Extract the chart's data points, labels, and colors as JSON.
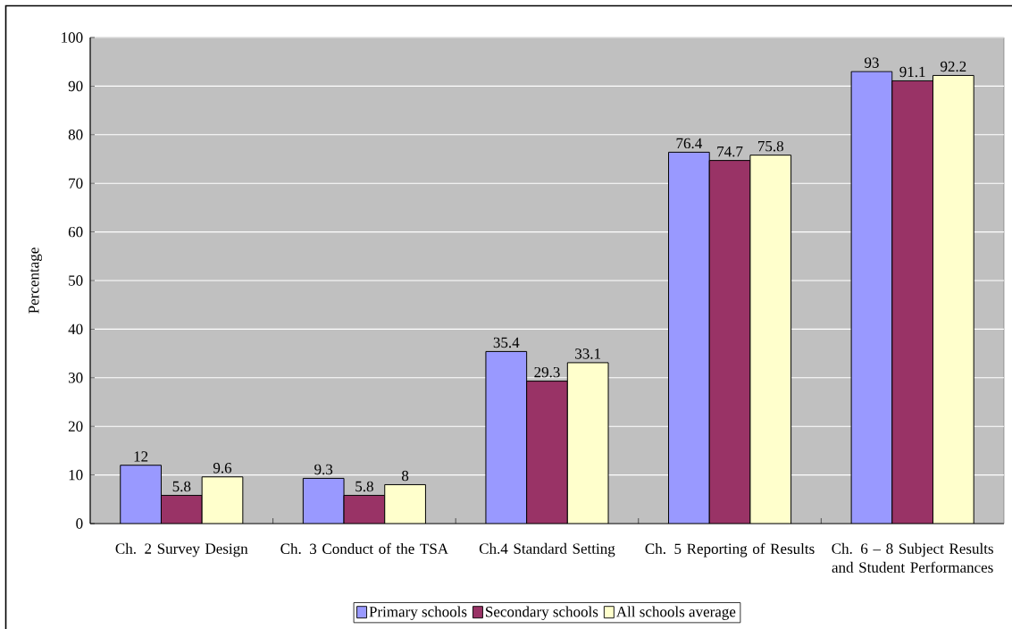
{
  "chart_data": {
    "type": "bar",
    "ylabel": "Percentage",
    "categories": [
      "Ch. 2 Survey Design",
      "Ch. 3 Conduct of the TSA",
      "Ch.4 Standard Setting",
      "Ch. 5 Reporting of Results",
      "Ch. 6 – 8 Subject Results and Student Performances"
    ],
    "series": [
      {
        "name": "Primary schools",
        "color": "#9999ff",
        "values": [
          12,
          9.3,
          35.4,
          76.4,
          93
        ]
      },
      {
        "name": "Secondary schools",
        "color": "#993366",
        "values": [
          5.8,
          5.8,
          29.3,
          74.7,
          91.1
        ]
      },
      {
        "name": "All schools average",
        "color": "#ffffcc",
        "values": [
          9.6,
          8,
          33.1,
          75.8,
          92.2
        ]
      }
    ],
    "ylim": [
      0,
      100
    ],
    "yticks": [
      0,
      10,
      20,
      30,
      40,
      50,
      60,
      70,
      80,
      90,
      100
    ],
    "grid": "y",
    "legend": "bottom",
    "data_labels": true
  }
}
